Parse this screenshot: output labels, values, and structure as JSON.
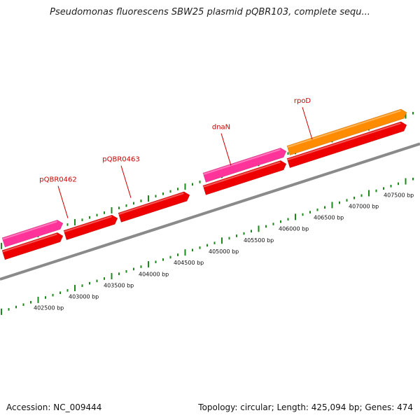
{
  "title": "Pseudomonas fluorescens SBW25 plasmid pQBR103, complete sequ...",
  "footer": {
    "accession": "Accession: NC_009444",
    "summary": "Topology: circular; Length: 425,094 bp; Genes: 474"
  },
  "colors": {
    "background": "#ffffff",
    "backbone": "#8a8a8a",
    "gene_red": "#ee0000",
    "gene_magenta": "#ff3399",
    "gene_orange": "#ff8c00",
    "tick_green": "#1a8a1a",
    "label_red": "#cc0000"
  },
  "scale_labels": [
    "402500 bp",
    "403000 bp",
    "403500 bp",
    "404000 bp",
    "404500 bp",
    "405000 bp",
    "405500 bp",
    "406000 bp",
    "406500 bp",
    "407000 bp",
    "407500 bp"
  ],
  "genes": [
    {
      "name": "",
      "track": "outer",
      "color": "magenta",
      "start": 401950,
      "end": 402800
    },
    {
      "name": "",
      "track": "inner",
      "color": "red",
      "start": 401950,
      "end": 402800
    },
    {
      "name": "",
      "track": "inner",
      "color": "red",
      "start": 402830,
      "end": 403580
    },
    {
      "name": "",
      "track": "inner",
      "color": "red",
      "start": 403610,
      "end": 404610
    },
    {
      "name": "",
      "track": "outer",
      "color": "magenta",
      "start": 404820,
      "end": 405990
    },
    {
      "name": "",
      "track": "inner",
      "color": "red",
      "start": 404820,
      "end": 405990
    },
    {
      "name": "",
      "track": "outer",
      "color": "orange",
      "start": 406020,
      "end": 407710
    },
    {
      "name": "",
      "track": "inner",
      "color": "red",
      "start": 406020,
      "end": 407710
    }
  ],
  "gene_labels": [
    {
      "text": "pQBR0462",
      "pos": 402870
    },
    {
      "text": "pQBR0463",
      "pos": 403770
    },
    {
      "text": "dnaN",
      "pos": 405200
    },
    {
      "text": "rpoD",
      "pos": 406360
    }
  ]
}
